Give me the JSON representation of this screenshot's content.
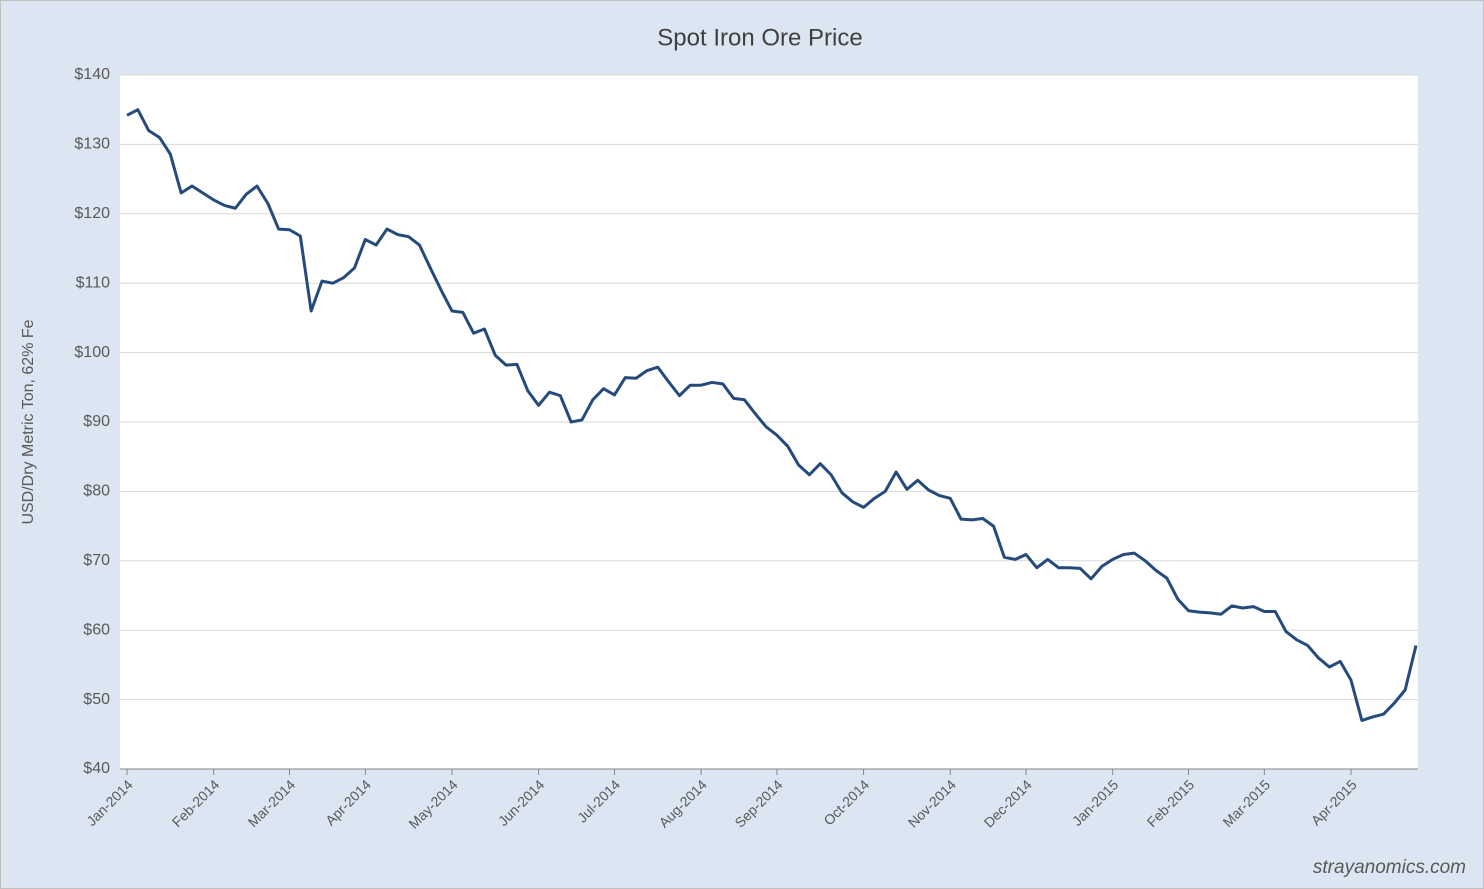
{
  "chart_data": {
    "type": "line",
    "title": "Spot Iron Ore Price",
    "ylabel": "USD/Dry Metric Ton, 62% Fe",
    "watermark": "strayanomics.com",
    "categories": [
      "Jan-2014",
      null,
      null,
      null,
      null,
      null,
      null,
      null,
      "Feb-2014",
      null,
      null,
      null,
      null,
      null,
      null,
      "Mar-2014",
      null,
      null,
      null,
      null,
      null,
      null,
      "Apr-2014",
      null,
      null,
      null,
      null,
      null,
      null,
      null,
      "May-2014",
      null,
      null,
      null,
      null,
      null,
      null,
      null,
      "Jun-2014",
      null,
      null,
      null,
      null,
      null,
      null,
      "Jul-2014",
      null,
      null,
      null,
      null,
      null,
      null,
      null,
      "Aug-2014",
      null,
      null,
      null,
      null,
      null,
      null,
      "Sep-2014",
      null,
      null,
      null,
      null,
      null,
      null,
      null,
      "Oct-2014",
      null,
      null,
      null,
      null,
      null,
      null,
      null,
      "Nov-2014",
      null,
      null,
      null,
      null,
      null,
      null,
      "Dec-2014",
      null,
      null,
      null,
      null,
      null,
      null,
      null,
      "Jan-2015",
      null,
      null,
      null,
      null,
      null,
      null,
      "Feb-2015",
      null,
      null,
      null,
      null,
      null,
      null,
      "Mar-2015",
      null,
      null,
      null,
      null,
      null,
      null,
      null,
      "Apr-2015",
      null,
      null,
      null,
      null,
      null,
      null
    ],
    "values": [
      134.2,
      135,
      132,
      131,
      128.6,
      123,
      124,
      123,
      122,
      121.2,
      120.8,
      122.8,
      124,
      121.5,
      117.8,
      117.7,
      116.8,
      106,
      110.3,
      110,
      110.8,
      112.2,
      116.3,
      115.5,
      117.8,
      117,
      116.7,
      115.5,
      112.2,
      109,
      106,
      105.8,
      102.8,
      103.4,
      99.6,
      98.2,
      98.3,
      94.5,
      92.4,
      94.3,
      93.8,
      90,
      90.3,
      93.2,
      94.8,
      93.9,
      96.4,
      96.3,
      97.4,
      97.9,
      95.8,
      93.8,
      95.3,
      95.3,
      95.7,
      95.5,
      93.4,
      93.2,
      91.2,
      89.3,
      88.1,
      86.5,
      83.8,
      82.4,
      84,
      82.4,
      79.8,
      78.5,
      77.7,
      79,
      80,
      82.8,
      80.3,
      81.6,
      80.2,
      79.4,
      79,
      76,
      75.9,
      76.1,
      75,
      70.5,
      70.2,
      70.9,
      69,
      70.2,
      69,
      69,
      68.9,
      67.4,
      69.2,
      70.2,
      70.9,
      71.1,
      70,
      68.6,
      67.5,
      64.5,
      62.8,
      62.6,
      62.5,
      62.3,
      63.5,
      63.2,
      63.4,
      62.7,
      62.7,
      59.8,
      58.6,
      57.8,
      56,
      54.7,
      55.5,
      52.8,
      47,
      47.5,
      47.9,
      49.5,
      51.4,
      57.8
    ],
    "color": "#254a7c",
    "ylim": [
      40,
      140
    ],
    "yticks": [
      {
        "value": 40,
        "label": "$40"
      },
      {
        "value": 50,
        "label": "$50"
      },
      {
        "value": 60,
        "label": "$60"
      },
      {
        "value": 70,
        "label": "$70"
      },
      {
        "value": 80,
        "label": "$80"
      },
      {
        "value": 90,
        "label": "$90"
      },
      {
        "value": 100,
        "label": "$100"
      },
      {
        "value": 110,
        "label": "$110"
      },
      {
        "value": 120,
        "label": "$120"
      },
      {
        "value": 130,
        "label": "$130"
      },
      {
        "value": 140,
        "label": "$140"
      }
    ],
    "grid": true
  }
}
